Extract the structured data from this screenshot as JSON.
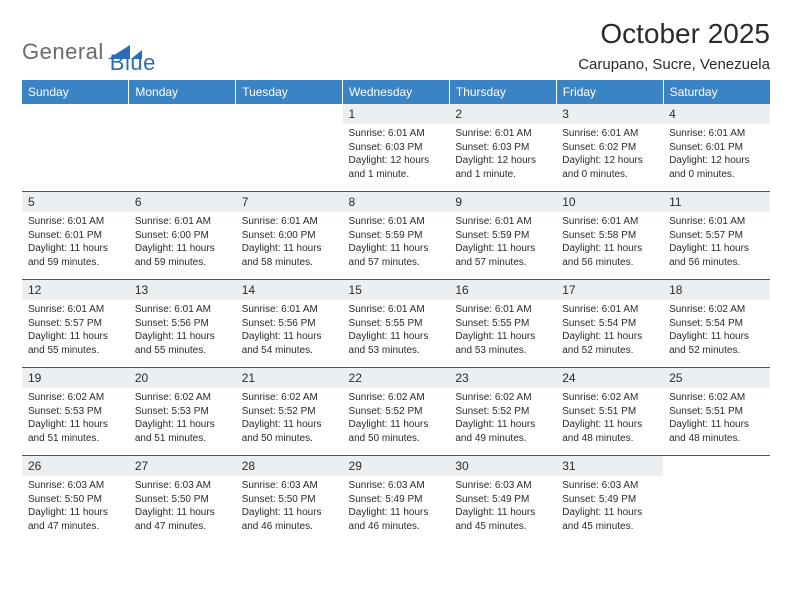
{
  "brand": {
    "name_left": "General",
    "name_right": "Blue",
    "color_left": "#6a6a6a",
    "color_right": "#2a6db4",
    "mark_color": "#2a6db4"
  },
  "title": "October 2025",
  "location": "Carupano, Sucre, Venezuela",
  "colors": {
    "header_bg": "#3a83c5",
    "header_text": "#ffffff",
    "daynum_bg": "#eceff1",
    "row_divider": "#2f5f8a",
    "text": "#2b2b2b",
    "background": "#ffffff"
  },
  "typography": {
    "title_fontsize": 28,
    "location_fontsize": 15,
    "dayheader_fontsize": 12,
    "daynum_fontsize": 12,
    "detail_fontsize": 10
  },
  "day_headers": [
    "Sunday",
    "Monday",
    "Tuesday",
    "Wednesday",
    "Thursday",
    "Friday",
    "Saturday"
  ],
  "weeks": [
    [
      {
        "n": "",
        "sunrise": "",
        "sunset": "",
        "daylight": ""
      },
      {
        "n": "",
        "sunrise": "",
        "sunset": "",
        "daylight": ""
      },
      {
        "n": "",
        "sunrise": "",
        "sunset": "",
        "daylight": ""
      },
      {
        "n": "1",
        "sunrise": "6:01 AM",
        "sunset": "6:03 PM",
        "daylight": "12 hours and 1 minute."
      },
      {
        "n": "2",
        "sunrise": "6:01 AM",
        "sunset": "6:03 PM",
        "daylight": "12 hours and 1 minute."
      },
      {
        "n": "3",
        "sunrise": "6:01 AM",
        "sunset": "6:02 PM",
        "daylight": "12 hours and 0 minutes."
      },
      {
        "n": "4",
        "sunrise": "6:01 AM",
        "sunset": "6:01 PM",
        "daylight": "12 hours and 0 minutes."
      }
    ],
    [
      {
        "n": "5",
        "sunrise": "6:01 AM",
        "sunset": "6:01 PM",
        "daylight": "11 hours and 59 minutes."
      },
      {
        "n": "6",
        "sunrise": "6:01 AM",
        "sunset": "6:00 PM",
        "daylight": "11 hours and 59 minutes."
      },
      {
        "n": "7",
        "sunrise": "6:01 AM",
        "sunset": "6:00 PM",
        "daylight": "11 hours and 58 minutes."
      },
      {
        "n": "8",
        "sunrise": "6:01 AM",
        "sunset": "5:59 PM",
        "daylight": "11 hours and 57 minutes."
      },
      {
        "n": "9",
        "sunrise": "6:01 AM",
        "sunset": "5:59 PM",
        "daylight": "11 hours and 57 minutes."
      },
      {
        "n": "10",
        "sunrise": "6:01 AM",
        "sunset": "5:58 PM",
        "daylight": "11 hours and 56 minutes."
      },
      {
        "n": "11",
        "sunrise": "6:01 AM",
        "sunset": "5:57 PM",
        "daylight": "11 hours and 56 minutes."
      }
    ],
    [
      {
        "n": "12",
        "sunrise": "6:01 AM",
        "sunset": "5:57 PM",
        "daylight": "11 hours and 55 minutes."
      },
      {
        "n": "13",
        "sunrise": "6:01 AM",
        "sunset": "5:56 PM",
        "daylight": "11 hours and 55 minutes."
      },
      {
        "n": "14",
        "sunrise": "6:01 AM",
        "sunset": "5:56 PM",
        "daylight": "11 hours and 54 minutes."
      },
      {
        "n": "15",
        "sunrise": "6:01 AM",
        "sunset": "5:55 PM",
        "daylight": "11 hours and 53 minutes."
      },
      {
        "n": "16",
        "sunrise": "6:01 AM",
        "sunset": "5:55 PM",
        "daylight": "11 hours and 53 minutes."
      },
      {
        "n": "17",
        "sunrise": "6:01 AM",
        "sunset": "5:54 PM",
        "daylight": "11 hours and 52 minutes."
      },
      {
        "n": "18",
        "sunrise": "6:02 AM",
        "sunset": "5:54 PM",
        "daylight": "11 hours and 52 minutes."
      }
    ],
    [
      {
        "n": "19",
        "sunrise": "6:02 AM",
        "sunset": "5:53 PM",
        "daylight": "11 hours and 51 minutes."
      },
      {
        "n": "20",
        "sunrise": "6:02 AM",
        "sunset": "5:53 PM",
        "daylight": "11 hours and 51 minutes."
      },
      {
        "n": "21",
        "sunrise": "6:02 AM",
        "sunset": "5:52 PM",
        "daylight": "11 hours and 50 minutes."
      },
      {
        "n": "22",
        "sunrise": "6:02 AM",
        "sunset": "5:52 PM",
        "daylight": "11 hours and 50 minutes."
      },
      {
        "n": "23",
        "sunrise": "6:02 AM",
        "sunset": "5:52 PM",
        "daylight": "11 hours and 49 minutes."
      },
      {
        "n": "24",
        "sunrise": "6:02 AM",
        "sunset": "5:51 PM",
        "daylight": "11 hours and 48 minutes."
      },
      {
        "n": "25",
        "sunrise": "6:02 AM",
        "sunset": "5:51 PM",
        "daylight": "11 hours and 48 minutes."
      }
    ],
    [
      {
        "n": "26",
        "sunrise": "6:03 AM",
        "sunset": "5:50 PM",
        "daylight": "11 hours and 47 minutes."
      },
      {
        "n": "27",
        "sunrise": "6:03 AM",
        "sunset": "5:50 PM",
        "daylight": "11 hours and 47 minutes."
      },
      {
        "n": "28",
        "sunrise": "6:03 AM",
        "sunset": "5:50 PM",
        "daylight": "11 hours and 46 minutes."
      },
      {
        "n": "29",
        "sunrise": "6:03 AM",
        "sunset": "5:49 PM",
        "daylight": "11 hours and 46 minutes."
      },
      {
        "n": "30",
        "sunrise": "6:03 AM",
        "sunset": "5:49 PM",
        "daylight": "11 hours and 45 minutes."
      },
      {
        "n": "31",
        "sunrise": "6:03 AM",
        "sunset": "5:49 PM",
        "daylight": "11 hours and 45 minutes."
      },
      {
        "n": "",
        "sunrise": "",
        "sunset": "",
        "daylight": ""
      }
    ]
  ],
  "labels": {
    "sunrise": "Sunrise:",
    "sunset": "Sunset:",
    "daylight": "Daylight:"
  }
}
